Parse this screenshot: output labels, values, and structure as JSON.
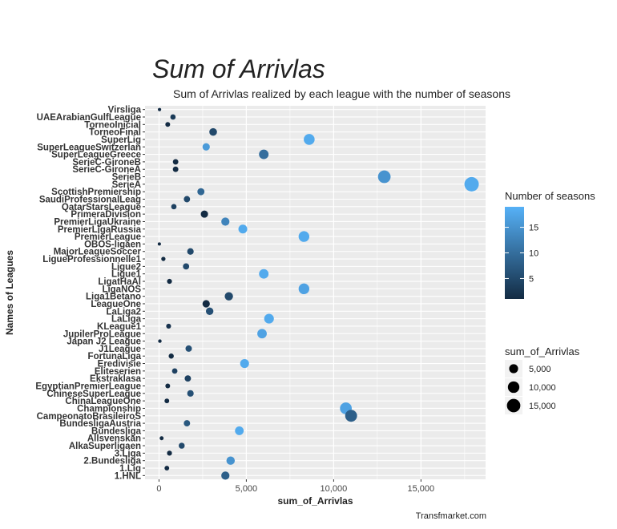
{
  "header": {
    "title": "Sum of Arrivlas",
    "subtitle": "Sum of Arrivlas realized by each league with the number of seasons",
    "caption": "Transfmarket.com"
  },
  "colors": {
    "low": "#132B43",
    "high": "#56B1F7",
    "panel": "#EBEBEB",
    "grid": "#FFFFFF"
  },
  "chart_data": {
    "type": "scatter",
    "title": "Sum of Arrivlas",
    "subtitle": "Sum of Arrivlas realized by each league with the number of seasons",
    "xlabel": "sum_of_Arrivlas",
    "ylabel": "Names of Leagues",
    "xlim": [
      -800,
      18700
    ],
    "x_ticks": [
      0,
      5000,
      10000,
      15000
    ],
    "x_tick_labels": [
      "0",
      "5,000",
      "10,000",
      "15,000"
    ],
    "grid": true,
    "legend_position": "right",
    "color_legend": {
      "title": "Number of seasons",
      "ticks": [
        5,
        10,
        15
      ],
      "range": [
        1,
        19
      ]
    },
    "size_legend": {
      "title": "sum_of_Arrivlas",
      "values": [
        5000,
        10000,
        15000
      ],
      "labels": [
        "5,000",
        "10,000",
        "15,000"
      ]
    },
    "points": [
      {
        "league": "Virsliga",
        "x": 30,
        "seasons": 1
      },
      {
        "league": "UAEArabianGulfLeague",
        "x": 800,
        "seasons": 3
      },
      {
        "league": "TorneoInicial",
        "x": 500,
        "seasons": 1
      },
      {
        "league": "TorneoFinal",
        "x": 3100,
        "seasons": 5
      },
      {
        "league": "SuperLig",
        "x": 8600,
        "seasons": 18
      },
      {
        "league": "SuperLeagueSwitzerlan",
        "x": 2700,
        "seasons": 16
      },
      {
        "league": "SuperLeagueGreece",
        "x": 6000,
        "seasons": 10
      },
      {
        "league": "SerieC-GironeB",
        "x": 950,
        "seasons": 1
      },
      {
        "league": "SerieC-GironeA",
        "x": 950,
        "seasons": 1
      },
      {
        "league": "SerieB",
        "x": 12900,
        "seasons": 15
      },
      {
        "league": "SerieA",
        "x": 17900,
        "seasons": 18
      },
      {
        "league": "ScottishPremiership",
        "x": 2400,
        "seasons": 9
      },
      {
        "league": "SaudiProfessionalLeag",
        "x": 1600,
        "seasons": 5
      },
      {
        "league": "QatarStarsLeague",
        "x": 850,
        "seasons": 4
      },
      {
        "league": "PrimeraDivision",
        "x": 2600,
        "seasons": 1
      },
      {
        "league": "PremierLigaUkraine",
        "x": 3800,
        "seasons": 13
      },
      {
        "league": "PremierLigaRussia",
        "x": 4800,
        "seasons": 18
      },
      {
        "league": "PremierLeague",
        "x": 8300,
        "seasons": 18
      },
      {
        "league": "OBOS-ligaen",
        "x": 20,
        "seasons": 1
      },
      {
        "league": "MajorLeagueSoccer",
        "x": 1800,
        "seasons": 5
      },
      {
        "league": "LigueProfessionnelle1",
        "x": 250,
        "seasons": 1
      },
      {
        "league": "Ligue2",
        "x": 1550,
        "seasons": 5
      },
      {
        "league": "Ligue1",
        "x": 6000,
        "seasons": 18
      },
      {
        "league": "LigatHaAl",
        "x": 600,
        "seasons": 1
      },
      {
        "league": "LigaNOS",
        "x": 8300,
        "seasons": 17
      },
      {
        "league": "Liga1Betano",
        "x": 4000,
        "seasons": 5
      },
      {
        "league": "LeagueOne",
        "x": 2700,
        "seasons": 1
      },
      {
        "league": "LaLiga2",
        "x": 2900,
        "seasons": 6
      },
      {
        "league": "LaLiga",
        "x": 6300,
        "seasons": 18
      },
      {
        "league": "KLeague1",
        "x": 550,
        "seasons": 2
      },
      {
        "league": "JupilerProLeague",
        "x": 5900,
        "seasons": 17
      },
      {
        "league": "Japan J2 League",
        "x": 50,
        "seasons": 1
      },
      {
        "league": "J1League",
        "x": 1700,
        "seasons": 6
      },
      {
        "league": "FortunaLiga",
        "x": 700,
        "seasons": 1
      },
      {
        "league": "Eredivisie",
        "x": 4900,
        "seasons": 18
      },
      {
        "league": "Eliteserien",
        "x": 900,
        "seasons": 4
      },
      {
        "league": "Ekstraklasa",
        "x": 1650,
        "seasons": 4
      },
      {
        "league": "EgyptianPremierLeague",
        "x": 500,
        "seasons": 1
      },
      {
        "league": "ChineseSuperLeague",
        "x": 1800,
        "seasons": 6
      },
      {
        "league": "ChinaLeagueOne",
        "x": 450,
        "seasons": 1
      },
      {
        "league": "Championship",
        "x": 10700,
        "seasons": 17
      },
      {
        "league": "CampeonatoBrasileiroS",
        "x": 11000,
        "seasons": 8
      },
      {
        "league": "BundesligaAustria",
        "x": 1600,
        "seasons": 7
      },
      {
        "league": "Bundesliga",
        "x": 4600,
        "seasons": 18
      },
      {
        "league": "Allsvenskan",
        "x": 150,
        "seasons": 1
      },
      {
        "league": "AlkaSuperligaen",
        "x": 1300,
        "seasons": 5
      },
      {
        "league": "3.Liga",
        "x": 600,
        "seasons": 1
      },
      {
        "league": "2.Bundesliga",
        "x": 4100,
        "seasons": 15
      },
      {
        "league": "1.Lig",
        "x": 450,
        "seasons": 1
      },
      {
        "league": "1.HNL",
        "x": 3800,
        "seasons": 8
      }
    ]
  }
}
